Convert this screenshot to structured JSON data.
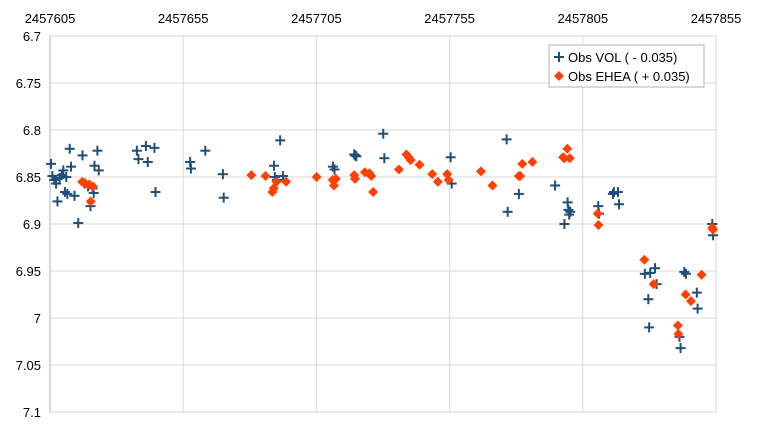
{
  "chart_data": {
    "type": "scatter",
    "title": "",
    "xlabel": "",
    "ylabel": "",
    "xlim": [
      2457605,
      2457855
    ],
    "ylim": [
      6.7,
      7.1
    ],
    "y_inverted": true,
    "x_ticks": [
      "2457605",
      "2457655",
      "2457705",
      "2457755",
      "2457805",
      "2457855"
    ],
    "y_ticks": [
      "6.7",
      "6.75",
      "6.8",
      "6.85",
      "6.9",
      "6.95",
      "7",
      "7.05",
      "7.1"
    ],
    "grid": true,
    "legend_position": "top-right",
    "series": [
      {
        "name": "Obs VOL ( - 0.035)",
        "marker": "plus",
        "color": "#1f4e79",
        "points": [
          [
            2457605.4,
            6.836
          ],
          [
            2457605.9,
            6.849
          ],
          [
            2457606.6,
            6.853
          ],
          [
            2457607.3,
            6.857
          ],
          [
            2457607.8,
            6.876
          ],
          [
            2457608.6,
            6.851
          ],
          [
            2457609.4,
            6.848
          ],
          [
            2457610.0,
            6.843
          ],
          [
            2457610.6,
            6.866
          ],
          [
            2457611.1,
            6.85
          ],
          [
            2457611.5,
            6.868
          ],
          [
            2457612.4,
            6.82
          ],
          [
            2457612.9,
            6.839
          ],
          [
            2457614.2,
            6.87
          ],
          [
            2457615.6,
            6.899
          ],
          [
            2457617.2,
            6.827
          ],
          [
            2457618.1,
            6.857
          ],
          [
            2457619.3,
            6.86
          ],
          [
            2457620.2,
            6.881
          ],
          [
            2457621.0,
            6.862
          ],
          [
            2457621.4,
            6.867
          ],
          [
            2457621.7,
            6.838
          ],
          [
            2457622.8,
            6.822
          ],
          [
            2457623.3,
            6.843
          ],
          [
            2457637.6,
            6.822
          ],
          [
            2457638.2,
            6.831
          ],
          [
            2457641.0,
            6.817
          ],
          [
            2457641.7,
            6.834
          ],
          [
            2457644.2,
            6.819
          ],
          [
            2457644.6,
            6.866
          ],
          [
            2457657.6,
            6.834
          ],
          [
            2457657.9,
            6.841
          ],
          [
            2457663.3,
            6.822
          ],
          [
            2457669.9,
            6.847
          ],
          [
            2457670.2,
            6.872
          ],
          [
            2457689.1,
            6.838
          ],
          [
            2457689.4,
            6.85
          ],
          [
            2457690.2,
            6.853
          ],
          [
            2457691.4,
            6.811
          ],
          [
            2457692.5,
            6.849
          ],
          [
            2457711.2,
            6.839
          ],
          [
            2457711.8,
            6.842
          ],
          [
            2457719.2,
            6.826
          ],
          [
            2457719.6,
            6.827
          ],
          [
            2457720.0,
            6.828
          ],
          [
            2457730.1,
            6.804
          ],
          [
            2457730.5,
            6.83
          ],
          [
            2457755.4,
            6.829
          ],
          [
            2457755.8,
            6.857
          ],
          [
            2457776.4,
            6.81
          ],
          [
            2457776.8,
            6.887
          ],
          [
            2457781.0,
            6.868
          ],
          [
            2457794.6,
            6.859
          ],
          [
            2457798.1,
            6.9
          ],
          [
            2457799.3,
            6.877
          ],
          [
            2457799.6,
            6.885
          ],
          [
            2457799.9,
            6.89
          ],
          [
            2457800.3,
            6.887
          ],
          [
            2457810.8,
            6.881
          ],
          [
            2457811.1,
            6.889
          ],
          [
            2457816.3,
            6.868
          ],
          [
            2457816.7,
            6.866
          ],
          [
            2457818.2,
            6.866
          ],
          [
            2457818.6,
            6.879
          ],
          [
            2457828.3,
            6.953
          ],
          [
            2457829.6,
            6.98
          ],
          [
            2457829.9,
            7.01
          ],
          [
            2457830.3,
            6.952
          ],
          [
            2457832.1,
            6.947
          ],
          [
            2457832.7,
            6.964
          ],
          [
            2457841.3,
            7.02
          ],
          [
            2457841.7,
            7.032
          ],
          [
            2457843.1,
            6.951
          ],
          [
            2457843.7,
            6.953
          ],
          [
            2457847.8,
            6.973
          ],
          [
            2457848.1,
            6.99
          ],
          [
            2457853.6,
            6.9
          ],
          [
            2457853.9,
            6.912
          ]
        ]
      },
      {
        "name": "Obs EHEA ( + 0.035)",
        "marker": "diamond",
        "color": "#ff4000",
        "points": [
          [
            2457617.1,
            6.855
          ],
          [
            2457618.3,
            6.857
          ],
          [
            2457619.7,
            6.858
          ],
          [
            2457620.3,
            6.876
          ],
          [
            2457621.1,
            6.86
          ],
          [
            2457680.6,
            6.848
          ],
          [
            2457685.9,
            6.849
          ],
          [
            2457688.5,
            6.866
          ],
          [
            2457689.0,
            6.862
          ],
          [
            2457690.0,
            6.855
          ],
          [
            2457693.6,
            6.855
          ],
          [
            2457705.1,
            6.85
          ],
          [
            2457711.1,
            6.853
          ],
          [
            2457711.6,
            6.859
          ],
          [
            2457712.3,
            6.852
          ],
          [
            2457719.2,
            6.848
          ],
          [
            2457719.5,
            6.852
          ],
          [
            2457723.2,
            6.845
          ],
          [
            2457724.9,
            6.846
          ],
          [
            2457725.6,
            6.849
          ],
          [
            2457726.3,
            6.866
          ],
          [
            2457736.0,
            6.842
          ],
          [
            2457738.8,
            6.826
          ],
          [
            2457739.6,
            6.829
          ],
          [
            2457740.4,
            6.832
          ],
          [
            2457743.7,
            6.837
          ],
          [
            2457748.5,
            6.847
          ],
          [
            2457750.6,
            6.855
          ],
          [
            2457754.1,
            6.847
          ],
          [
            2457754.6,
            6.853
          ],
          [
            2457766.8,
            6.844
          ],
          [
            2457771.1,
            6.859
          ],
          [
            2457781.0,
            6.849
          ],
          [
            2457781.5,
            6.849
          ],
          [
            2457782.3,
            6.836
          ],
          [
            2457786.1,
            6.834
          ],
          [
            2457797.6,
            6.829
          ],
          [
            2457798.1,
            6.83
          ],
          [
            2457799.2,
            6.82
          ],
          [
            2457800.1,
            6.83
          ],
          [
            2457810.6,
            6.889
          ],
          [
            2457810.9,
            6.901
          ],
          [
            2457828.1,
            6.938
          ],
          [
            2457831.6,
            6.964
          ],
          [
            2457840.7,
            7.008
          ],
          [
            2457840.9,
            7.017
          ],
          [
            2457843.6,
            6.975
          ],
          [
            2457845.6,
            6.982
          ],
          [
            2457849.6,
            6.954
          ],
          [
            2457853.6,
            6.904
          ],
          [
            2457853.9,
            6.906
          ]
        ]
      }
    ]
  }
}
